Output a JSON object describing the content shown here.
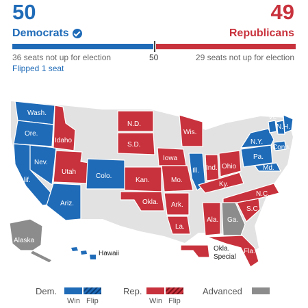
{
  "header": {
    "dem_seats": "50",
    "dem_label": "Democrats",
    "rep_seats": "49",
    "rep_label": "Republicans",
    "dem_not_up": "36 seats not up for election",
    "midline": "50",
    "rep_not_up": "29 seats not up for election",
    "flipped": "Flipped 1 seat"
  },
  "colors": {
    "dem": "#1f6bb8",
    "rep": "#c8323c",
    "advanced": "#8c8c8c",
    "no_race": "#e2e2e2"
  },
  "states": {
    "wash": "Wash.",
    "ore": "Ore.",
    "calif": "Calif.",
    "nev": "Nev.",
    "idaho": "Idaho",
    "utah": "Utah",
    "ariz": "Ariz.",
    "colo": "Colo.",
    "nd": "N.D.",
    "sd": "S.D.",
    "kan": "Kan.",
    "okla": "Okla.",
    "iowa": "Iowa",
    "mo": "Mo.",
    "ark": "Ark.",
    "la": "La.",
    "wis": "Wis.",
    "ill": "Ill.",
    "ind": "Ind.",
    "ohio": "Ohio",
    "ky": "Ky.",
    "ala": "Ala.",
    "ga": "Ga.",
    "fla": "Fla.",
    "nc": "N.C.",
    "sc": "S.C.",
    "pa": "Pa.",
    "ny": "N.Y.",
    "conn": "Conn.",
    "md": "Md.",
    "vt": "Vt.",
    "nh": "N.H.",
    "alaska": "Alaska",
    "hawaii": "Hawaii",
    "okla_special": [
      "Okla.",
      "Special"
    ]
  },
  "legend": {
    "dem": "Dem.",
    "rep": "Rep.",
    "win": "Win",
    "flip": "Flip",
    "advanced": "Advanced"
  }
}
